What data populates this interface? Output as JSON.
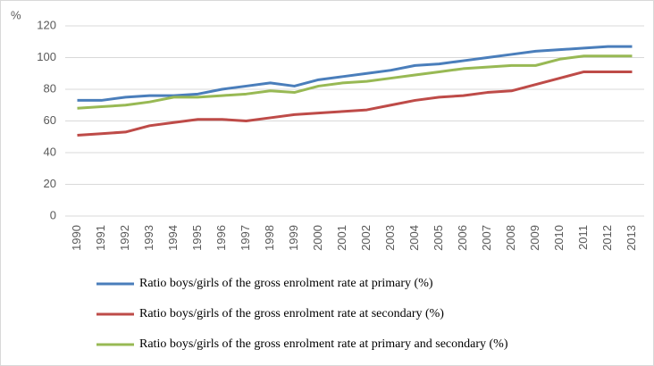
{
  "chart_data": {
    "type": "line",
    "y_label": "%",
    "categories": [
      "1990",
      "1991",
      "1992",
      "1993",
      "1994",
      "1995",
      "1996",
      "1997",
      "1998",
      "1999",
      "2000",
      "2001",
      "2002",
      "2003",
      "2004",
      "2005",
      "2006",
      "2007",
      "2008",
      "2009",
      "2010",
      "2011",
      "2012",
      "2013"
    ],
    "series": [
      {
        "name": "Ratio boys/girls of the gross enrolment rate at primary (%)",
        "color": "#4a7ebb",
        "values": [
          73,
          73,
          75,
          76,
          76,
          77,
          80,
          82,
          84,
          82,
          86,
          88,
          90,
          92,
          95,
          96,
          98,
          100,
          102,
          104,
          105,
          106,
          107,
          107
        ]
      },
      {
        "name": "Ratio boys/girls of the gross enrolment rate at secondary (%)",
        "color": "#be4b48",
        "values": [
          51,
          52,
          53,
          57,
          59,
          61,
          61,
          60,
          62,
          64,
          65,
          66,
          67,
          70,
          73,
          75,
          76,
          78,
          79,
          83,
          87,
          91,
          91,
          91
        ]
      },
      {
        "name": "Ratio boys/girls of the gross enrolment rate at primary and secondary (%)",
        "color": "#98b954",
        "values": [
          68,
          69,
          70,
          72,
          75,
          75,
          76,
          77,
          79,
          78,
          82,
          84,
          85,
          87,
          89,
          91,
          93,
          94,
          95,
          95,
          99,
          101,
          101,
          101
        ]
      }
    ],
    "ylim": [
      0,
      120
    ],
    "yticks": [
      0,
      20,
      40,
      60,
      80,
      100,
      120
    ],
    "grid": true
  }
}
